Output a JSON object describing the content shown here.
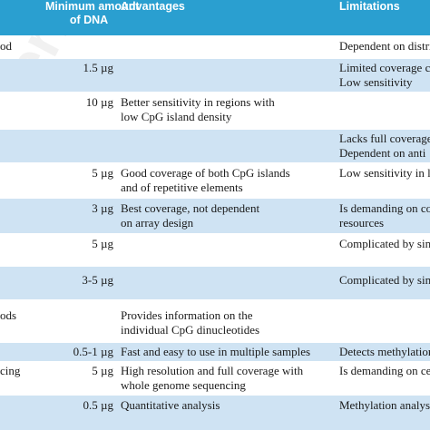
{
  "header": {
    "min_dna_line1": "Minimum amount",
    "min_dna_line2": "of DNA",
    "advantages": "Advantages",
    "limitations": "Limitations"
  },
  "watermark": "erratum",
  "rows": [
    {
      "method": "od",
      "dna": "",
      "adv1": "",
      "adv2": "",
      "lim1": "Dependent on distri",
      "lim2": ""
    },
    {
      "method": "",
      "dna": "1.5 µg",
      "adv1": "",
      "adv2": "",
      "lim1": "Limited coverage c",
      "lim2": "Low sensitivity"
    },
    {
      "method": "",
      "dna": "10 µg",
      "adv1": "Better sensitivity in regions with",
      "adv2": "low CpG island density",
      "lim1": "",
      "lim2": ""
    },
    {
      "method": "",
      "dna": "",
      "adv1": "",
      "adv2": "",
      "lim1": "Lacks full coverage",
      "lim2": "Dependent on anti"
    },
    {
      "method": "",
      "dna": "5 µg",
      "adv1": "Good coverage of both CpG islands",
      "adv2": "and of repetitive elements",
      "lim1": "Low sensitivity in lo",
      "lim2": ""
    },
    {
      "method": "",
      "dna": "3 µg",
      "adv1": "Best coverage, not dependent",
      "adv2": "on array design",
      "lim1": "Is demanding on co",
      "lim2": "resources"
    },
    {
      "method": "",
      "dna": "5 µg",
      "adv1": "",
      "adv2": "",
      "lim1": "Complicated by sin",
      "lim2": ""
    },
    {
      "method": "",
      "dna": "3-5 µg",
      "adv1": "",
      "adv2": "",
      "lim1": "Complicated by sim",
      "lim2": ""
    },
    {
      "method": "ods",
      "dna": "",
      "adv1": "Provides information on the",
      "adv2": "individual CpG dinucleotides",
      "lim1": "",
      "lim2": ""
    },
    {
      "method": "",
      "dna": "0.5-1 µg",
      "adv1": "Fast and easy to use in multiple samples",
      "adv2": "",
      "lim1": "Detects methylation",
      "lim2": ""
    },
    {
      "method": "cing",
      "dna": "5 µg",
      "adv1": "High resolution and full coverage with",
      "adv2": "whole genome sequencing",
      "lim1": "Is demanding on ce",
      "lim2": ""
    },
    {
      "method": "",
      "dna": "0.5 µg",
      "adv1": "Quantitative analysis",
      "adv2": "",
      "lim1": "Methylation analys",
      "lim2": ""
    }
  ]
}
